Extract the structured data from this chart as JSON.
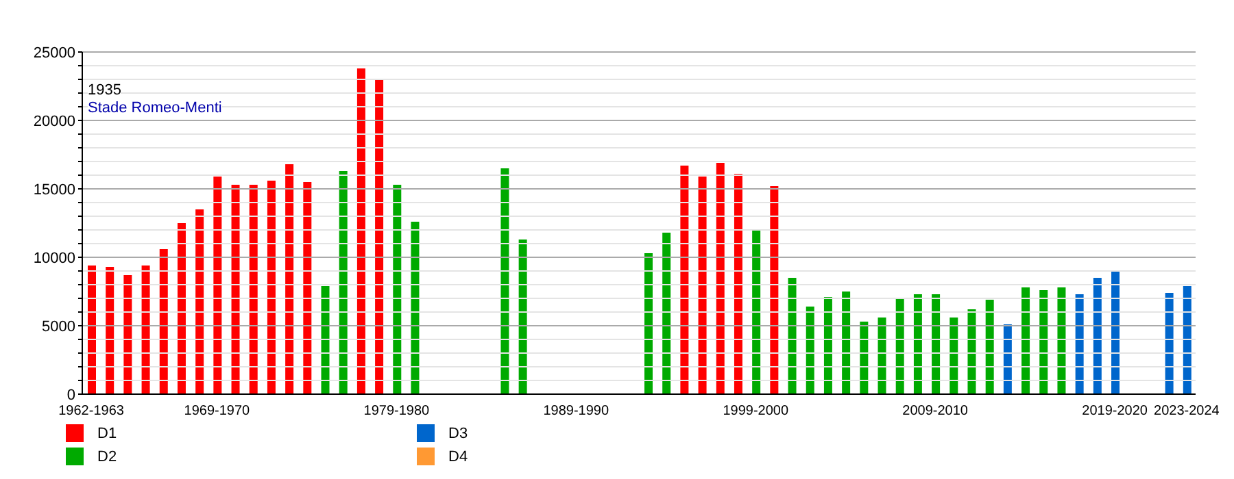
{
  "chart_data": {
    "type": "bar",
    "stacked": true,
    "categories": [
      "1962-1963",
      null,
      null,
      null,
      null,
      null,
      null,
      "1969-1970",
      null,
      null,
      null,
      null,
      null,
      null,
      null,
      null,
      null,
      "1979-1980",
      null,
      null,
      null,
      null,
      null,
      null,
      null,
      null,
      null,
      "1989-1990",
      null,
      null,
      null,
      null,
      null,
      null,
      null,
      null,
      null,
      "1999-2000",
      null,
      null,
      null,
      null,
      null,
      null,
      null,
      null,
      null,
      "2009-2010",
      null,
      null,
      null,
      null,
      null,
      null,
      null,
      null,
      null,
      "2019-2020",
      null,
      null,
      null,
      "2023-2024"
    ],
    "series": [
      {
        "name": "D1",
        "color": "#ff0000",
        "values": [
          9400,
          9300,
          8700,
          9400,
          10600,
          12500,
          13500,
          15900,
          15300,
          15300,
          15600,
          16800,
          15500,
          null,
          null,
          23800,
          23000,
          null,
          null,
          null,
          null,
          null,
          null,
          null,
          null,
          null,
          null,
          null,
          null,
          null,
          null,
          null,
          null,
          16700,
          15900,
          16900,
          16100,
          null,
          15200,
          null,
          null,
          null,
          null,
          null,
          null,
          null,
          null,
          null,
          null,
          null,
          null,
          null,
          null,
          null,
          null,
          null,
          null,
          null,
          null,
          null,
          null,
          null
        ]
      },
      {
        "name": "D2",
        "color": "#00aa00",
        "values": [
          null,
          null,
          null,
          null,
          null,
          null,
          null,
          null,
          null,
          null,
          null,
          null,
          null,
          7900,
          16300,
          null,
          null,
          15300,
          12600,
          null,
          null,
          null,
          null,
          16500,
          11300,
          null,
          null,
          null,
          null,
          null,
          null,
          10300,
          11800,
          null,
          null,
          null,
          null,
          12000,
          null,
          8500,
          6400,
          7100,
          7500,
          5300,
          5600,
          7000,
          7300,
          7300,
          5600,
          6200,
          6900,
          null,
          7800,
          7600,
          7800,
          null,
          null,
          null,
          null,
          null,
          null,
          null
        ]
      },
      {
        "name": "D3",
        "color": "#0066cc",
        "values": [
          null,
          null,
          null,
          null,
          null,
          null,
          null,
          null,
          null,
          null,
          null,
          null,
          null,
          null,
          null,
          null,
          null,
          null,
          null,
          null,
          null,
          null,
          null,
          null,
          null,
          null,
          null,
          null,
          null,
          null,
          null,
          null,
          null,
          null,
          null,
          null,
          null,
          null,
          null,
          null,
          null,
          null,
          null,
          null,
          null,
          null,
          null,
          null,
          null,
          null,
          null,
          5100,
          null,
          null,
          null,
          7300,
          8500,
          9000,
          null,
          null,
          7400,
          7900
        ]
      },
      {
        "name": "D4",
        "color": "#ff9933",
        "values": [
          null,
          null,
          null,
          null,
          null,
          null,
          null,
          null,
          null,
          null,
          null,
          null,
          null,
          null,
          null,
          null,
          null,
          null,
          null,
          null,
          null,
          null,
          null,
          null,
          null,
          null,
          null,
          null,
          null,
          null,
          null,
          null,
          null,
          null,
          null,
          null,
          null,
          null,
          null,
          null,
          null,
          null,
          null,
          null,
          null,
          null,
          null,
          null,
          null,
          null,
          null,
          null,
          null,
          null,
          null,
          null,
          null,
          null,
          null,
          null,
          null,
          null
        ]
      }
    ],
    "ylim": [
      0,
      25000
    ],
    "yticks": [
      0,
      {
        "value": 1000,
        "label": null
      },
      {
        "value": 2000,
        "label": null
      },
      {
        "value": 3000,
        "label": null
      },
      {
        "value": 4000,
        "label": null
      },
      5000,
      {
        "value": 6000,
        "label": null
      },
      {
        "value": 7000,
        "label": null
      },
      {
        "value": 8000,
        "label": null
      },
      {
        "value": 9000,
        "label": null
      },
      10000,
      {
        "value": 11000,
        "label": null
      },
      {
        "value": 12000,
        "label": null
      },
      {
        "value": 13000,
        "label": null
      },
      {
        "value": 14000,
        "label": null
      },
      15000,
      {
        "value": 16000,
        "label": null
      },
      {
        "value": 17000,
        "label": null
      },
      {
        "value": 18000,
        "label": null
      },
      {
        "value": 19000,
        "label": null
      },
      20000,
      {
        "value": 21000,
        "label": null
      },
      {
        "value": 22000,
        "label": null
      },
      {
        "value": 23000,
        "label": null
      },
      {
        "value": 24000,
        "label": null
      },
      25000
    ],
    "grid": "y",
    "legend": "bottom",
    "annotations": [
      "1935",
      "Stade Romeo-Menti"
    ]
  }
}
